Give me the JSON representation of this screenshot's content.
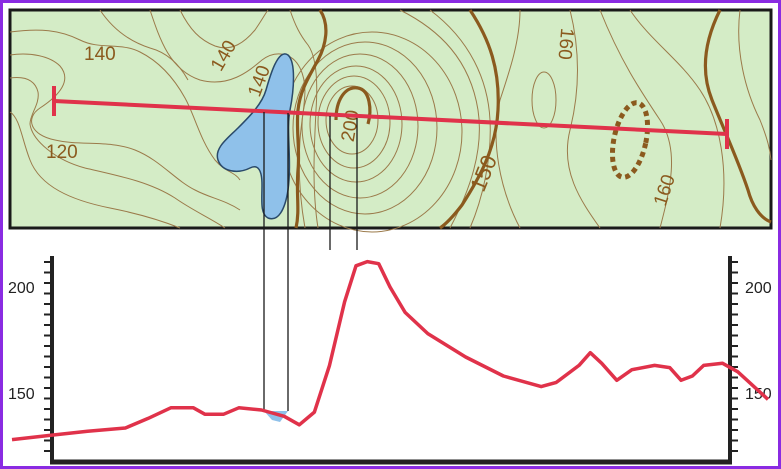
{
  "map": {
    "contour_labels": [
      {
        "text": "140",
        "name": "contour-label-140-left"
      },
      {
        "text": "140",
        "name": "contour-label-140-middle"
      },
      {
        "text": "140",
        "name": "contour-label-140-lake"
      },
      {
        "text": "120",
        "name": "contour-label-120"
      },
      {
        "text": "200",
        "name": "contour-label-200"
      },
      {
        "text": "150",
        "name": "contour-label-150"
      },
      {
        "text": "160",
        "name": "contour-label-160-top"
      },
      {
        "text": "160",
        "name": "contour-label-160-bottom"
      }
    ],
    "colors": {
      "land": "#d4ecc6",
      "water": "#8fc1ea",
      "contour": "#9b7a4a",
      "index_contour": "#8b5a1e",
      "profile_line": "#e0324a",
      "frame": "#8a2be2"
    }
  },
  "profile": {
    "axis_labels": [
      {
        "text": "200",
        "name": "elevation-label-200-left"
      },
      {
        "text": "150",
        "name": "elevation-label-150-left"
      },
      {
        "text": "200",
        "name": "elevation-label-200-right"
      },
      {
        "text": "150",
        "name": "elevation-label-150-right"
      }
    ],
    "elevation_range": [
      120,
      215
    ],
    "elevation_points": [
      [
        0,
        128
      ],
      [
        0.05,
        130
      ],
      [
        0.1,
        132
      ],
      [
        0.15,
        133.5
      ],
      [
        0.18,
        138
      ],
      [
        0.21,
        143
      ],
      [
        0.24,
        143
      ],
      [
        0.255,
        140
      ],
      [
        0.28,
        140
      ],
      [
        0.3,
        143
      ],
      [
        0.33,
        142
      ],
      [
        0.36,
        139
      ],
      [
        0.38,
        135
      ],
      [
        0.4,
        141
      ],
      [
        0.42,
        163
      ],
      [
        0.44,
        193
      ],
      [
        0.455,
        210
      ],
      [
        0.47,
        212
      ],
      [
        0.485,
        211
      ],
      [
        0.5,
        200
      ],
      [
        0.52,
        188
      ],
      [
        0.55,
        178
      ],
      [
        0.6,
        167
      ],
      [
        0.65,
        158
      ],
      [
        0.7,
        153
      ],
      [
        0.72,
        155
      ],
      [
        0.75,
        163
      ],
      [
        0.765,
        169
      ],
      [
        0.78,
        164
      ],
      [
        0.8,
        156
      ],
      [
        0.82,
        161
      ],
      [
        0.85,
        163
      ],
      [
        0.87,
        162
      ],
      [
        0.885,
        156
      ],
      [
        0.9,
        158
      ],
      [
        0.915,
        163
      ],
      [
        0.94,
        164
      ],
      [
        0.96,
        160
      ],
      [
        1.0,
        147
      ]
    ]
  }
}
